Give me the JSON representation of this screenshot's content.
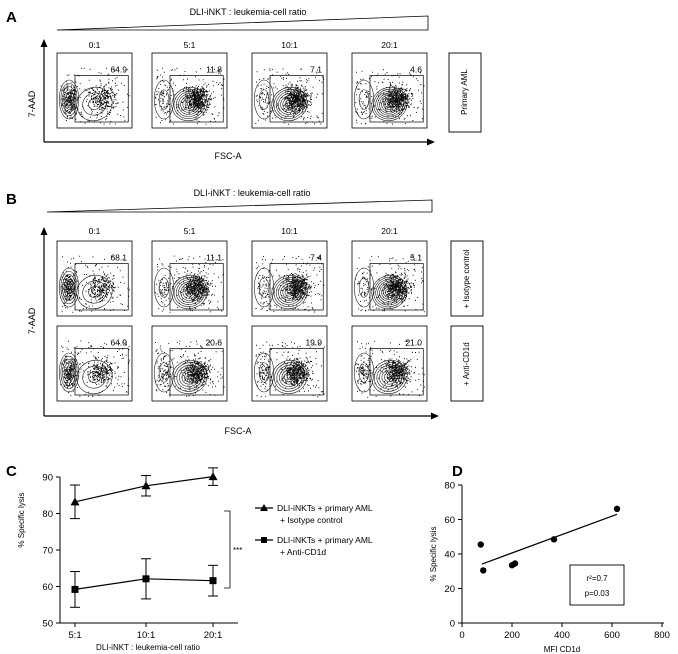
{
  "panel_a": {
    "label": "A",
    "ratio_title": "DLI-iNKT : leukemia-cell ratio",
    "y_label": "7-AAD",
    "x_label": "FSC-A",
    "ratios": [
      "0:1",
      "5:1",
      "10:1",
      "20:1"
    ],
    "rows": [
      {
        "condition": "Primary AML",
        "values": [
          "64.9",
          "11.8",
          "7.1",
          "4.6"
        ]
      }
    ]
  },
  "panel_b": {
    "label": "B",
    "ratio_title": "DLI-iNKT : leukemia-cell ratio",
    "y_label": "7-AAD",
    "x_label": "FSC-A",
    "ratios": [
      "0:1",
      "5:1",
      "10:1",
      "20:1"
    ],
    "rows": [
      {
        "condition": "+ Isotype control",
        "values": [
          "68.1",
          "11.1",
          "7.4",
          "5.1"
        ]
      },
      {
        "condition": "+ Anti-CD1d",
        "values": [
          "64.9",
          "20.6",
          "19.9",
          "21.0"
        ]
      }
    ]
  },
  "chart_data": [
    {
      "type": "line",
      "panel": "C",
      "xlabel": "DLI-iNKT : leukemia-cell ratio",
      "ylabel": "% Specific lysis",
      "categories": [
        "5:1",
        "10:1",
        "20:1"
      ],
      "ylim": [
        50,
        90
      ],
      "yticks": [
        "50",
        "60",
        "70",
        "80",
        "90"
      ],
      "significance": "***",
      "series": [
        {
          "name_lines": [
            "DLI-iNKTs + primary AML",
            "+ Isotype control"
          ],
          "marker": "triangle",
          "values": [
            83.2,
            87.6,
            90.1
          ],
          "errors": [
            4.6,
            2.8,
            2.4
          ]
        },
        {
          "name_lines": [
            "DLI-iNKTs + primary AML",
            "+ Anti-CD1d"
          ],
          "marker": "square",
          "values": [
            59.2,
            62.1,
            61.6
          ],
          "errors": [
            4.9,
            5.5,
            4.2
          ]
        }
      ]
    },
    {
      "type": "scatter",
      "panel": "D",
      "xlabel": "MFI CD1d",
      "ylabel": "% Specific lysis",
      "xlim": [
        0,
        800
      ],
      "ylim": [
        0,
        80
      ],
      "xticks": [
        "0",
        "200",
        "400",
        "600",
        "800"
      ],
      "yticks": [
        "0",
        "20",
        "40",
        "60",
        "80"
      ],
      "points": [
        [
          75,
          45.5
        ],
        [
          85,
          30.5
        ],
        [
          200,
          33.5
        ],
        [
          212,
          34.5
        ],
        [
          368,
          48.5
        ],
        [
          620,
          66.2
        ]
      ],
      "fit": {
        "x": [
          80,
          620
        ],
        "y": [
          34.2,
          63.0
        ]
      },
      "stats": {
        "r2": "r²=0.7",
        "p": "p=0.03"
      }
    }
  ]
}
